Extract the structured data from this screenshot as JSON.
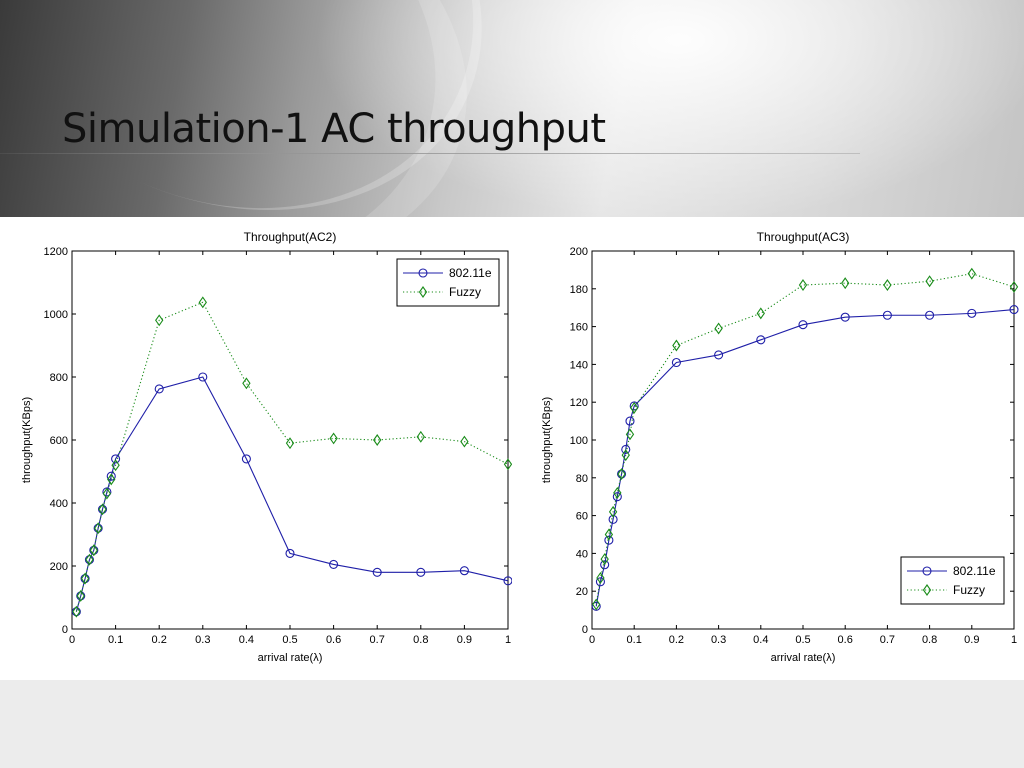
{
  "slide": {
    "title": "Simulation-1 AC throughput"
  },
  "colors": {
    "series_80211e": "#1f1fa8",
    "series_fuzzy": "#1a8c1a",
    "axis": "#000000"
  },
  "chart_data": [
    {
      "type": "line",
      "title": "Throughput(AC2)",
      "xlabel": "arrival rate(λ)",
      "ylabel": "throughput(KBps)",
      "xlim": [
        0,
        1
      ],
      "ylim": [
        0,
        1200
      ],
      "xticks": [
        "0",
        "0.1",
        "0.2",
        "0.3",
        "0.4",
        "0.5",
        "0.6",
        "0.7",
        "0.8",
        "0.9",
        "1"
      ],
      "yticks": [
        "0",
        "200",
        "400",
        "600",
        "800",
        "1000",
        "1200"
      ],
      "legend_position": "top-right",
      "series": [
        {
          "name": "802.11e",
          "marker": "circle",
          "line": "solid",
          "x": [
            0.01,
            0.02,
            0.03,
            0.04,
            0.05,
            0.06,
            0.07,
            0.08,
            0.09,
            0.1,
            0.2,
            0.3,
            0.4,
            0.5,
            0.6,
            0.7,
            0.8,
            0.9,
            1.0
          ],
          "y": [
            55,
            105,
            160,
            220,
            250,
            320,
            380,
            435,
            485,
            540,
            762,
            800,
            540,
            240,
            205,
            180,
            180,
            185,
            153
          ]
        },
        {
          "name": "Fuzzy",
          "marker": "diamond",
          "line": "dotted",
          "x": [
            0.01,
            0.02,
            0.03,
            0.04,
            0.05,
            0.06,
            0.07,
            0.08,
            0.09,
            0.1,
            0.2,
            0.3,
            0.4,
            0.5,
            0.6,
            0.7,
            0.8,
            0.9,
            1.0
          ],
          "y": [
            55,
            105,
            160,
            220,
            250,
            320,
            380,
            430,
            475,
            520,
            980,
            1037,
            780,
            590,
            605,
            600,
            610,
            595,
            523
          ]
        }
      ]
    },
    {
      "type": "line",
      "title": "Throughput(AC3)",
      "xlabel": "arrival rate(λ)",
      "ylabel": "throughput(KBps)",
      "xlim": [
        0,
        1
      ],
      "ylim": [
        0,
        200
      ],
      "xticks": [
        "0",
        "0.1",
        "0.2",
        "0.3",
        "0.4",
        "0.5",
        "0.6",
        "0.7",
        "0.8",
        "0.9",
        "1"
      ],
      "yticks": [
        "0",
        "20",
        "40",
        "60",
        "80",
        "100",
        "120",
        "140",
        "160",
        "180",
        "200"
      ],
      "legend_position": "bottom-right",
      "series": [
        {
          "name": "802.11e",
          "marker": "circle",
          "line": "solid",
          "x": [
            0.01,
            0.02,
            0.03,
            0.04,
            0.05,
            0.06,
            0.07,
            0.08,
            0.09,
            0.1,
            0.2,
            0.3,
            0.4,
            0.5,
            0.6,
            0.7,
            0.8,
            0.9,
            1.0
          ],
          "y": [
            12,
            25,
            34,
            47,
            58,
            70,
            82,
            95,
            110,
            118,
            141,
            145,
            153,
            161,
            165,
            166,
            166,
            167,
            169
          ]
        },
        {
          "name": "Fuzzy",
          "marker": "diamond",
          "line": "dotted",
          "x": [
            0.01,
            0.02,
            0.03,
            0.04,
            0.05,
            0.06,
            0.07,
            0.08,
            0.09,
            0.1,
            0.2,
            0.3,
            0.4,
            0.5,
            0.6,
            0.7,
            0.8,
            0.9,
            1.0
          ],
          "y": [
            13,
            27,
            37,
            50,
            62,
            72,
            82,
            92,
            103,
            117,
            150,
            159,
            167,
            182,
            183,
            182,
            184,
            188,
            181
          ]
        }
      ]
    }
  ]
}
